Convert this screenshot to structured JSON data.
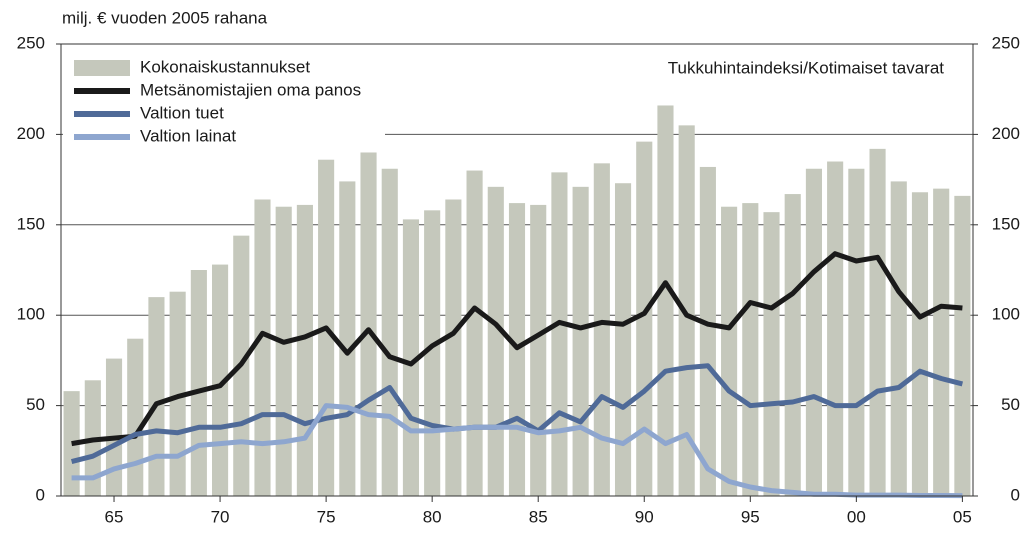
{
  "chart_data": {
    "type": "bar_line",
    "y_label": "milj. € vuoden 2005 rahana",
    "annotation": "Tukkuhintaindeksi/Kotimaiset tavarat",
    "categories": [
      null,
      null,
      "65",
      null,
      null,
      null,
      null,
      "70",
      null,
      null,
      null,
      null,
      "75",
      null,
      null,
      null,
      null,
      "80",
      null,
      null,
      null,
      null,
      "85",
      null,
      null,
      null,
      null,
      "90",
      null,
      null,
      null,
      null,
      "95",
      null,
      null,
      null,
      null,
      "00",
      null,
      null,
      null,
      null,
      "05"
    ],
    "series": [
      {
        "name": "Kokonaiskustannukset",
        "kind": "bar",
        "color": "#c5c8bc",
        "values": [
          58,
          64,
          76,
          87,
          110,
          113,
          125,
          128,
          144,
          164,
          160,
          161,
          186,
          174,
          190,
          181,
          153,
          158,
          164,
          180,
          171,
          162,
          161,
          179,
          171,
          184,
          173,
          196,
          216,
          205,
          182,
          160,
          162,
          157,
          167,
          181,
          185,
          181,
          192,
          174,
          168,
          170,
          166
        ]
      },
      {
        "name": "Metsänomistajien oma panos",
        "kind": "line",
        "color": "#1a1a1a",
        "values": [
          29,
          31,
          32,
          33,
          51,
          55,
          58,
          61,
          73,
          90,
          85,
          88,
          93,
          79,
          92,
          77,
          73,
          83,
          90,
          104,
          95,
          82,
          89,
          96,
          93,
          96,
          95,
          101,
          118,
          100,
          95,
          93,
          107,
          104,
          112,
          124,
          134,
          130,
          132,
          113,
          99,
          105,
          104
        ]
      },
      {
        "name": "Valtion tuet",
        "kind": "line",
        "color": "#4f6a98",
        "values": [
          19,
          22,
          28,
          34,
          36,
          35,
          38,
          38,
          40,
          45,
          45,
          40,
          43,
          45,
          53,
          60,
          43,
          39,
          37,
          38,
          38,
          43,
          36,
          46,
          41,
          55,
          49,
          58,
          69,
          71,
          72,
          58,
          50,
          51,
          52,
          55,
          50,
          50,
          58,
          60,
          69,
          65,
          62
        ]
      },
      {
        "name": "Valtion lainat",
        "kind": "line",
        "color": "#8ea6cf",
        "values": [
          10,
          10,
          15,
          18,
          22,
          22,
          28,
          29,
          30,
          29,
          30,
          32,
          50,
          49,
          45,
          44,
          36,
          36,
          37,
          38,
          38,
          38,
          35,
          36,
          38,
          32,
          29,
          37,
          29,
          34,
          15,
          8,
          5,
          3,
          2,
          1,
          1,
          0.5,
          0.5,
          0.5,
          0.3,
          0.3,
          0.2
        ]
      }
    ],
    "ylim": [
      0,
      250
    ],
    "yticks": [
      0,
      50,
      100,
      150,
      200,
      250
    ],
    "grid": true
  }
}
